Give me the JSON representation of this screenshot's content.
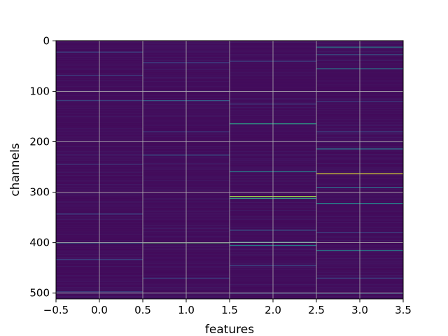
{
  "chart_data": {
    "type": "heatmap",
    "title": "",
    "xlabel": "features",
    "ylabel": "channels",
    "x_categories": [
      0,
      1,
      2,
      3
    ],
    "xlim": [
      -0.5,
      3.5
    ],
    "ylim": [
      511.5,
      -0.5
    ],
    "n_rows": 512,
    "x_ticks": [
      -0.5,
      0.0,
      0.5,
      1.0,
      1.5,
      2.0,
      2.5,
      3.0,
      3.5
    ],
    "x_tick_labels": [
      "−0.5",
      "0.0",
      "0.5",
      "1.0",
      "1.5",
      "2.0",
      "2.5",
      "3.0",
      "3.5"
    ],
    "y_ticks": [
      0,
      100,
      200,
      300,
      400,
      500
    ],
    "y_tick_labels": [
      "0",
      "100",
      "200",
      "300",
      "400",
      "500"
    ],
    "grid": true,
    "colormap": "viridis",
    "colormap_stops": [
      "#440154",
      "#3b528b",
      "#21918c",
      "#5ec962",
      "#fde725"
    ],
    "base_level": 0.03,
    "highlights": [
      {
        "col": 0,
        "row": 22,
        "value": 0.22
      },
      {
        "col": 0,
        "row": 68,
        "value": 0.18
      },
      {
        "col": 0,
        "row": 118,
        "value": 0.2
      },
      {
        "col": 0,
        "row": 244,
        "value": 0.18
      },
      {
        "col": 0,
        "row": 343,
        "value": 0.25
      },
      {
        "col": 0,
        "row": 400,
        "value": 0.45
      },
      {
        "col": 0,
        "row": 433,
        "value": 0.2
      },
      {
        "col": 0,
        "row": 497,
        "value": 0.2
      },
      {
        "col": 1,
        "row": 43,
        "value": 0.18
      },
      {
        "col": 1,
        "row": 118,
        "value": 0.3
      },
      {
        "col": 1,
        "row": 180,
        "value": 0.2
      },
      {
        "col": 1,
        "row": 226,
        "value": 0.3
      },
      {
        "col": 1,
        "row": 400,
        "value": 0.7
      },
      {
        "col": 1,
        "row": 470,
        "value": 0.2
      },
      {
        "col": 2,
        "row": 40,
        "value": 0.2
      },
      {
        "col": 2,
        "row": 125,
        "value": 0.2
      },
      {
        "col": 2,
        "row": 164,
        "value": 0.55
      },
      {
        "col": 2,
        "row": 259,
        "value": 0.45
      },
      {
        "col": 2,
        "row": 308,
        "value": 0.85
      },
      {
        "col": 2,
        "row": 312,
        "value": 0.55
      },
      {
        "col": 2,
        "row": 375,
        "value": 0.3
      },
      {
        "col": 2,
        "row": 399,
        "value": 0.55
      },
      {
        "col": 2,
        "row": 405,
        "value": 0.45
      },
      {
        "col": 2,
        "row": 445,
        "value": 0.2
      },
      {
        "col": 2,
        "row": 500,
        "value": 0.22
      },
      {
        "col": 3,
        "row": 12,
        "value": 0.45
      },
      {
        "col": 3,
        "row": 27,
        "value": 0.3
      },
      {
        "col": 3,
        "row": 55,
        "value": 0.45
      },
      {
        "col": 3,
        "row": 120,
        "value": 0.2
      },
      {
        "col": 3,
        "row": 180,
        "value": 0.25
      },
      {
        "col": 3,
        "row": 214,
        "value": 0.4
      },
      {
        "col": 3,
        "row": 263,
        "value": 0.95
      },
      {
        "col": 3,
        "row": 290,
        "value": 0.35
      },
      {
        "col": 3,
        "row": 322,
        "value": 0.45
      },
      {
        "col": 3,
        "row": 380,
        "value": 0.2
      },
      {
        "col": 3,
        "row": 415,
        "value": 0.45
      },
      {
        "col": 3,
        "row": 470,
        "value": 0.22
      },
      {
        "col": 3,
        "row": 500,
        "value": 0.3
      }
    ]
  }
}
